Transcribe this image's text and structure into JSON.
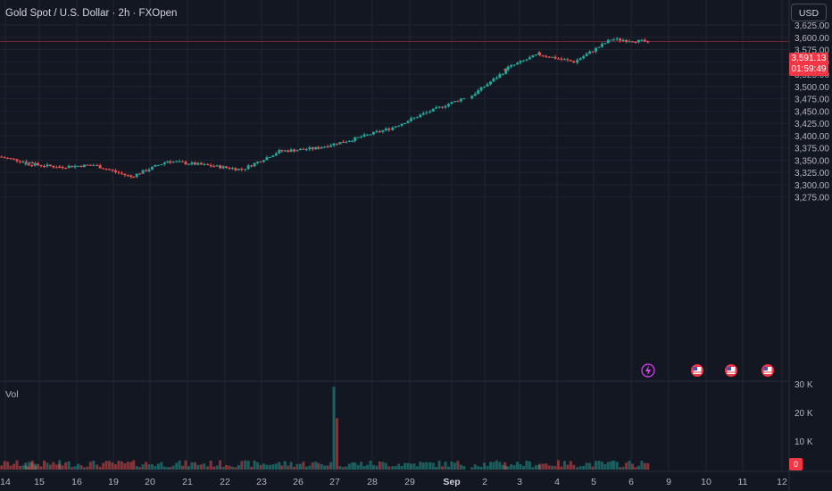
{
  "header": {
    "title": "Gold Spot / U.S. Dollar · 2h · FXOpen"
  },
  "toolbar": {
    "currency_label": "USD"
  },
  "volume_pane": {
    "label": "Vol",
    "current_value": "0"
  },
  "last_price": {
    "price": "3,591.13",
    "countdown": "01:59:49"
  },
  "colors": {
    "up": "#26a69a",
    "down": "#ef5350",
    "background": "#131722",
    "grid": "#1f2430",
    "axis_text": "#b2b5be"
  },
  "events": [
    {
      "icon": "lightning-icon",
      "x_label": "8"
    },
    {
      "icon": "us-flag-icon",
      "x_label": "10"
    },
    {
      "icon": "us-flag-icon",
      "x_label": "11"
    },
    {
      "icon": "us-flag-icon",
      "x_label": "12"
    }
  ],
  "chart_data": {
    "type": "candlestick",
    "title": "Gold Spot / U.S. Dollar · 2h · FXOpen",
    "y_ticks": [
      "3,625.00",
      "3,600.00",
      "3,575.00",
      "3,550.00",
      "3,525.00",
      "3,500.00",
      "3,475.00",
      "3,450.00",
      "3,425.00",
      "3,400.00",
      "3,375.00",
      "3,350.00",
      "3,325.00",
      "3,300.00",
      "3,275.00"
    ],
    "ylim": [
      3262,
      3632
    ],
    "volume_ticks": [
      "30 K",
      "20 K",
      "10 K"
    ],
    "volume_ylim": [
      0,
      30000
    ],
    "x_ticks": [
      "14",
      "15",
      "16",
      "19",
      "20",
      "21",
      "22",
      "23",
      "26",
      "27",
      "28",
      "29",
      "Sep",
      "2",
      "3",
      "4",
      "5",
      "6",
      "9",
      "10",
      "11",
      "12"
    ],
    "x_ticks_bold": [
      "Sep"
    ],
    "last_price": 3591.13,
    "daily_path": [
      {
        "date": "14",
        "open": 3357,
        "close": 3343
      },
      {
        "date": "15",
        "open": 3343,
        "close": 3336
      },
      {
        "date": "16",
        "open": 3336,
        "close": 3340
      },
      {
        "date": "19",
        "open": 3340,
        "close": 3316
      },
      {
        "date": "20",
        "open": 3316,
        "close": 3348
      },
      {
        "date": "21",
        "open": 3348,
        "close": 3340
      },
      {
        "date": "22",
        "open": 3340,
        "close": 3331
      },
      {
        "date": "23",
        "open": 3331,
        "close": 3368
      },
      {
        "date": "26",
        "open": 3368,
        "close": 3374
      },
      {
        "date": "27",
        "open": 3374,
        "close": 3392
      },
      {
        "date": "28",
        "open": 3392,
        "close": 3414
      },
      {
        "date": "29",
        "open": 3414,
        "close": 3447
      },
      {
        "date": "Sep",
        "open": 3447,
        "close": 3477
      },
      {
        "date": "2",
        "open": 3477,
        "close": 3533
      },
      {
        "date": "3",
        "open": 3533,
        "close": 3566
      },
      {
        "date": "4",
        "open": 3566,
        "close": 3550
      },
      {
        "date": "5",
        "open": 3550,
        "close": 3596
      },
      {
        "date": "6",
        "open": 3596,
        "close": 3591.13
      }
    ]
  }
}
